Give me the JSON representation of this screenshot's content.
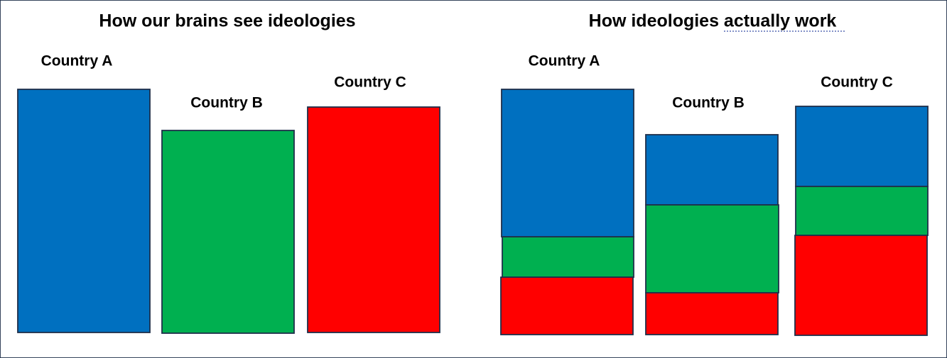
{
  "left": {
    "title": "How our brains see ideologies",
    "labels": [
      "Country A",
      "Country B",
      "Country C"
    ]
  },
  "right": {
    "title": "How ideologies actually work",
    "labels": [
      "Country A",
      "Country B",
      "Country C"
    ]
  }
}
